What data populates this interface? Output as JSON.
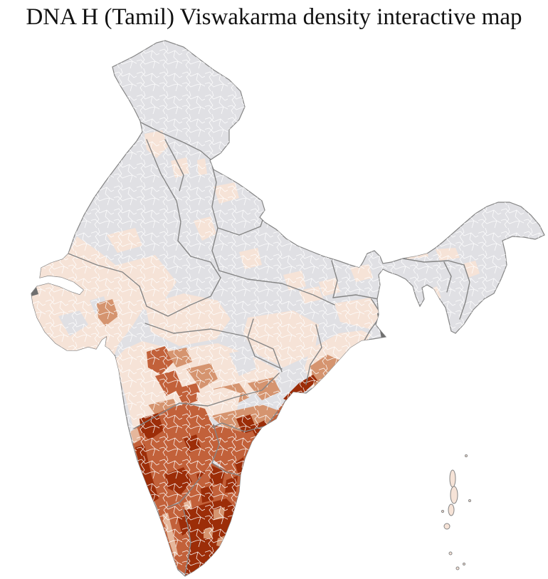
{
  "title": "DNA H (Tamil) Viswakarma density interactive map",
  "map": {
    "type": "choropleth",
    "country": "India",
    "subdivision": "district",
    "background_color": "#ffffff",
    "palette": {
      "none": "#e0e0e4",
      "very_low": "#f6e3d7",
      "low": "#e5b79c",
      "medium": "#d5946f",
      "high": "#c2613a",
      "very_high": "#9c2d08"
    },
    "border_colors": {
      "state": "#858585",
      "district": "#ffffff"
    },
    "marsh_color": "#6f6f6f",
    "regions": {
      "india_landmass": {
        "label": "India",
        "level": "none"
      },
      "jammu_kashmir": {
        "label": "Jammu & Kashmir",
        "level": "none"
      },
      "himachal_pradesh": {
        "label": "Himachal Pradesh",
        "level": "none"
      },
      "punjab": {
        "label": "Punjab",
        "level": "none"
      },
      "haryana": {
        "label": "Haryana",
        "level": "none"
      },
      "uttarakhand": {
        "label": "Uttarakhand",
        "level": "none"
      },
      "rajasthan": {
        "label": "Rajasthan",
        "level": "none"
      },
      "uttar_pradesh": {
        "label": "Uttar Pradesh",
        "level": "none"
      },
      "bihar": {
        "label": "Bihar",
        "level": "none"
      },
      "northeast_states": {
        "label": "Northeast states",
        "level": "none"
      },
      "gujarat": {
        "label": "Gujarat",
        "level": "very_low"
      },
      "madhya_pradesh": {
        "label": "Madhya Pradesh",
        "level": "very_low"
      },
      "chhattisgarh": {
        "label": "Chhattisgarh",
        "level": "very_low"
      },
      "jharkhand": {
        "label": "Jharkhand",
        "level": "very_low"
      },
      "west_bengal": {
        "label": "West Bengal",
        "level": "very_low"
      },
      "odisha": {
        "label": "Odisha",
        "level": "very_low"
      },
      "maharashtra": {
        "label": "Maharashtra",
        "level": "very_low"
      },
      "telangana": {
        "label": "Telangana",
        "level": "medium"
      },
      "andhra_pradesh": {
        "label": "Andhra Pradesh",
        "level": "high"
      },
      "karnataka": {
        "label": "Karnataka",
        "level": "high"
      },
      "goa": {
        "label": "Goa",
        "level": "low"
      },
      "kerala": {
        "label": "Kerala",
        "level": "high"
      },
      "tamil_nadu": {
        "label": "Tamil Nadu",
        "level": "high"
      },
      "tamil_nadu_south": {
        "label": "Tamil Nadu (south)",
        "level": "very_high"
      },
      "andaman_nicobar": {
        "label": "Andaman & Nicobar Islands",
        "level": "very_low"
      }
    }
  }
}
